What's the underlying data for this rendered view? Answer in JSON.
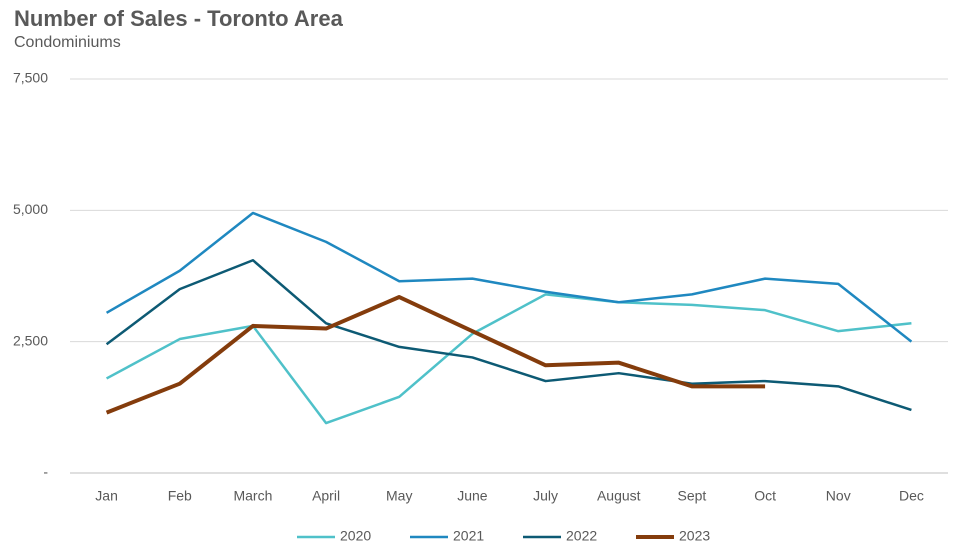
{
  "chart_data": {
    "type": "line",
    "title": "Number of Sales - Toronto Area",
    "subtitle": "Condominiums",
    "categories": [
      "Jan",
      "Feb",
      "March",
      "April",
      "May",
      "June",
      "July",
      "August",
      "Sept",
      "Oct",
      "Nov",
      "Dec"
    ],
    "series": [
      {
        "name": "2020",
        "color": "#4fc1c9",
        "values": [
          1800,
          2550,
          2800,
          950,
          1450,
          2650,
          3400,
          3250,
          3200,
          3100,
          2700,
          2850
        ]
      },
      {
        "name": "2021",
        "color": "#1f88c0",
        "values": [
          3050,
          3850,
          4950,
          4400,
          3650,
          3700,
          3450,
          3250,
          3400,
          3700,
          3600,
          2500
        ]
      },
      {
        "name": "2022",
        "color": "#0d5a74",
        "values": [
          2450,
          3500,
          4050,
          2850,
          2400,
          2200,
          1750,
          1900,
          1700,
          1750,
          1650,
          1200
        ]
      },
      {
        "name": "2023",
        "color": "#843c0c",
        "values": [
          1150,
          1700,
          2800,
          2750,
          3350,
          2700,
          2050,
          2100,
          1650,
          1650,
          null,
          null
        ]
      }
    ],
    "ylim": [
      0,
      7500
    ],
    "yticks": [
      {
        "value": 0,
        "label": "-"
      },
      {
        "value": 2500,
        "label": "2,500"
      },
      {
        "value": 5000,
        "label": "5,000"
      },
      {
        "value": 7500,
        "label": "7,500"
      }
    ],
    "grid": true,
    "legend": "bottom"
  }
}
